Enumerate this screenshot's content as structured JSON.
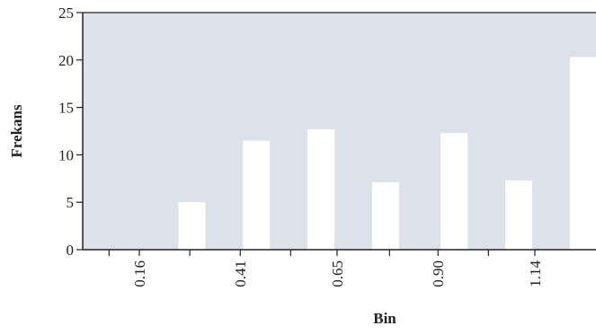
{
  "chart_data": {
    "type": "bar",
    "title": "",
    "xlabel": "Bin",
    "ylabel": "Frekans",
    "categories": [
      "0.29",
      "0.45",
      "0.61",
      "0.77",
      "0.94",
      "1.10",
      "1.26"
    ],
    "values": [
      5,
      11.5,
      12.7,
      7.1,
      12.3,
      7.3,
      20.3
    ],
    "x_values": [
      0.29,
      0.45,
      0.61,
      0.77,
      0.94,
      1.1,
      1.26
    ],
    "x_tick_values": [
      0.16,
      0.41,
      0.65,
      0.9,
      1.14
    ],
    "x_tick_labels": [
      "0.16",
      "0.41",
      "0.65",
      "0.90",
      "1.14"
    ],
    "y_ticks": [
      0,
      5,
      10,
      15,
      20,
      25
    ],
    "ylim": [
      0,
      25
    ],
    "grid": false,
    "legend": "none",
    "colors": {
      "plot_background": "#dde2ea",
      "bar": "#ffffff",
      "axis": "#222222",
      "text": "#222222"
    }
  }
}
